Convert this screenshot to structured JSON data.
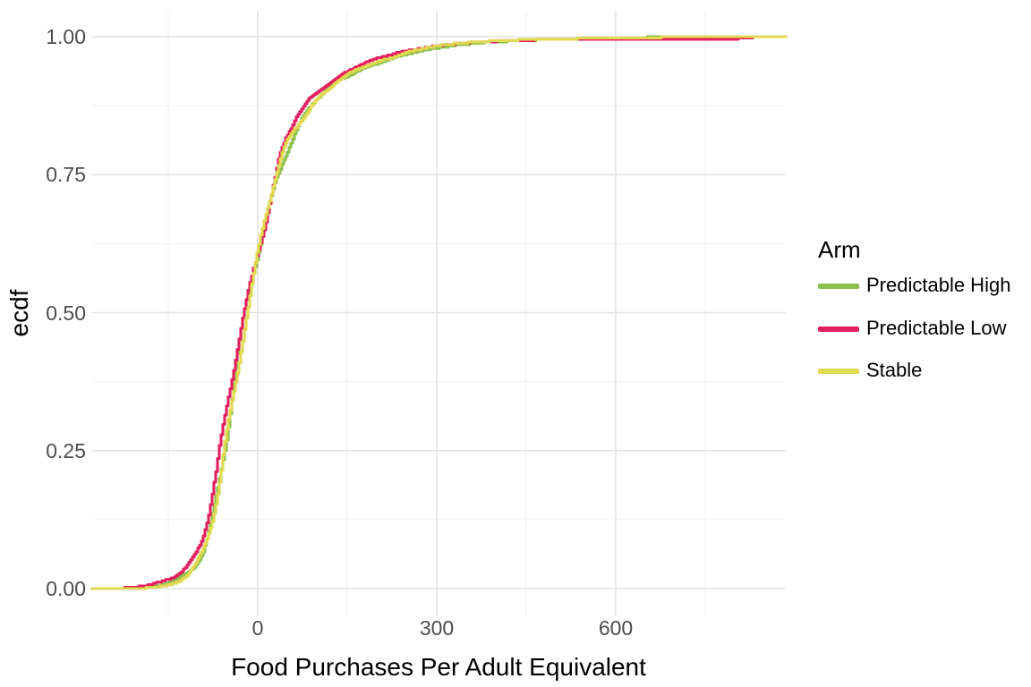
{
  "figure": {
    "y_axis": {
      "title": "ecdf",
      "ticks": [
        {
          "label": "0.00",
          "value": 0
        },
        {
          "label": "0.25",
          "value": 0.25
        },
        {
          "label": "0.50",
          "value": 0.5
        },
        {
          "label": "0.75",
          "value": 0.75
        },
        {
          "label": "1.00",
          "value": 1
        }
      ]
    },
    "x_axis": {
      "title": "Food Purchases Per Adult Equivalent",
      "ticks": [
        {
          "label": "0",
          "value": 0
        },
        {
          "label": "300",
          "value": 300
        },
        {
          "label": "600",
          "value": 600
        }
      ]
    },
    "legend": {
      "title": "Arm",
      "entries": [
        {
          "label": "Predictable High",
          "color": "#8CC04C"
        },
        {
          "label": "Predictable Low",
          "color": "#E12060"
        },
        {
          "label": "Stable",
          "color": "#E0DA50"
        }
      ]
    },
    "colors": {
      "grid_major": "#E3E3E3",
      "grid_minor": "#F1F1F1",
      "tick_text": "#4d4d4d",
      "title_text": "#000000"
    }
  },
  "chart_data": {
    "type": "line",
    "subtype": "ecdf_step",
    "title": "",
    "xlabel": "Food Purchases Per Adult Equivalent",
    "ylabel": "ecdf",
    "xlim": [
      -277,
      885
    ],
    "ylim": [
      -0.05,
      1.05
    ],
    "grid": true,
    "legend_position": "right",
    "legend_title": "Arm",
    "x_major_gridlines": [
      0,
      300,
      600
    ],
    "x_minor_gridlines": [
      -150,
      150,
      450,
      750
    ],
    "y_major_gridlines": [
      0,
      0.25,
      0.5,
      0.75,
      1
    ],
    "y_minor_gridlines": [
      0.125,
      0.375,
      0.625,
      0.875
    ],
    "n_steps": 420,
    "series": [
      {
        "name": "Predictable High",
        "color": "#8CC04C",
        "points": [
          [
            -277,
            0
          ],
          [
            -210,
            0.0005
          ],
          [
            -182,
            0.003
          ],
          [
            -158,
            0.007
          ],
          [
            -144,
            0.012
          ],
          [
            -130,
            0.019
          ],
          [
            -119,
            0.027
          ],
          [
            -110,
            0.037
          ],
          [
            -102,
            0.05
          ],
          [
            -95,
            0.066
          ],
          [
            -88,
            0.088
          ],
          [
            -82,
            0.112
          ],
          [
            -76,
            0.142
          ],
          [
            -70,
            0.176
          ],
          [
            -64,
            0.213
          ],
          [
            -57,
            0.254
          ],
          [
            -51,
            0.295
          ],
          [
            -45,
            0.337
          ],
          [
            -39,
            0.38
          ],
          [
            -33,
            0.421
          ],
          [
            -27,
            0.459
          ],
          [
            -21,
            0.493
          ],
          [
            -15,
            0.525
          ],
          [
            -9,
            0.556
          ],
          [
            -3,
            0.586
          ],
          [
            3,
            0.616
          ],
          [
            9,
            0.646
          ],
          [
            15,
            0.674
          ],
          [
            21,
            0.701
          ],
          [
            27,
            0.727
          ],
          [
            33,
            0.751
          ],
          [
            40,
            0.776
          ],
          [
            47,
            0.797
          ],
          [
            55,
            0.816
          ],
          [
            63,
            0.833
          ],
          [
            71,
            0.848
          ],
          [
            79,
            0.86
          ],
          [
            88,
            0.873
          ],
          [
            98,
            0.885
          ],
          [
            108,
            0.896
          ],
          [
            120,
            0.907
          ],
          [
            133,
            0.917
          ],
          [
            147,
            0.927
          ],
          [
            162,
            0.936
          ],
          [
            178,
            0.944
          ],
          [
            196,
            0.951
          ],
          [
            214,
            0.957
          ],
          [
            234,
            0.963
          ],
          [
            255,
            0.969
          ],
          [
            278,
            0.975
          ],
          [
            300,
            0.98
          ],
          [
            325,
            0.984
          ],
          [
            355,
            0.987
          ],
          [
            390,
            0.99
          ],
          [
            430,
            0.9925
          ],
          [
            470,
            0.9945
          ],
          [
            520,
            0.9958
          ],
          [
            570,
            0.997
          ],
          [
            630,
            0.998
          ],
          [
            690,
            1.0
          ],
          [
            885,
            1.0
          ]
        ]
      },
      {
        "name": "Predictable Low",
        "color": "#E12060",
        "points": [
          [
            -277,
            0
          ],
          [
            -225,
            0.001
          ],
          [
            -195,
            0.004
          ],
          [
            -172,
            0.009
          ],
          [
            -156,
            0.015
          ],
          [
            -142,
            0.022
          ],
          [
            -130,
            0.031
          ],
          [
            -120,
            0.042
          ],
          [
            -111,
            0.055
          ],
          [
            -103,
            0.07
          ],
          [
            -95,
            0.089
          ],
          [
            -88,
            0.112
          ],
          [
            -81,
            0.14
          ],
          [
            -74,
            0.174
          ],
          [
            -67,
            0.212
          ],
          [
            -61,
            0.252
          ],
          [
            -55,
            0.294
          ],
          [
            -49,
            0.336
          ],
          [
            -43,
            0.379
          ],
          [
            -37,
            0.421
          ],
          [
            -31,
            0.459
          ],
          [
            -25,
            0.493
          ],
          [
            -19,
            0.525
          ],
          [
            -13,
            0.556
          ],
          [
            -7,
            0.586
          ],
          [
            -1,
            0.616
          ],
          [
            5,
            0.646
          ],
          [
            11,
            0.674
          ],
          [
            17,
            0.701
          ],
          [
            23,
            0.727
          ],
          [
            29,
            0.751
          ],
          [
            35,
            0.777
          ],
          [
            42,
            0.799
          ],
          [
            49,
            0.818
          ],
          [
            57,
            0.836
          ],
          [
            64,
            0.852
          ],
          [
            72,
            0.864
          ],
          [
            80,
            0.876
          ],
          [
            90,
            0.888
          ],
          [
            100,
            0.899
          ],
          [
            111,
            0.91
          ],
          [
            124,
            0.921
          ],
          [
            138,
            0.931
          ],
          [
            152,
            0.94
          ],
          [
            168,
            0.948
          ],
          [
            185,
            0.955
          ],
          [
            205,
            0.962
          ],
          [
            225,
            0.968
          ],
          [
            247,
            0.974
          ],
          [
            270,
            0.979
          ],
          [
            295,
            0.983
          ],
          [
            322,
            0.986
          ],
          [
            352,
            0.989
          ],
          [
            385,
            0.991
          ],
          [
            425,
            0.993
          ],
          [
            470,
            0.9942
          ],
          [
            520,
            0.9948
          ],
          [
            600,
            0.9952
          ],
          [
            700,
            0.9958
          ],
          [
            800,
            0.9962
          ],
          [
            838,
            1.0
          ],
          [
            885,
            1.0
          ]
        ]
      },
      {
        "name": "Stable",
        "color": "#E0DA50",
        "points": [
          [
            -277,
            0
          ],
          [
            -205,
            0.0005
          ],
          [
            -175,
            0.002
          ],
          [
            -152,
            0.006
          ],
          [
            -138,
            0.011
          ],
          [
            -126,
            0.017
          ],
          [
            -116,
            0.025
          ],
          [
            -107,
            0.035
          ],
          [
            -99,
            0.048
          ],
          [
            -92,
            0.065
          ],
          [
            -86,
            0.085
          ],
          [
            -80,
            0.11
          ],
          [
            -74,
            0.14
          ],
          [
            -68,
            0.175
          ],
          [
            -62,
            0.213
          ],
          [
            -58,
            0.25
          ],
          [
            -52,
            0.293
          ],
          [
            -46,
            0.335
          ],
          [
            -40,
            0.378
          ],
          [
            -34,
            0.42
          ],
          [
            -28,
            0.458
          ],
          [
            -22,
            0.492
          ],
          [
            -16,
            0.524
          ],
          [
            -10,
            0.555
          ],
          [
            -4,
            0.585
          ],
          [
            2,
            0.615
          ],
          [
            8,
            0.645
          ],
          [
            14,
            0.673
          ],
          [
            20,
            0.7
          ],
          [
            26,
            0.726
          ],
          [
            32,
            0.75
          ],
          [
            39,
            0.776
          ],
          [
            46,
            0.797
          ],
          [
            54,
            0.816
          ],
          [
            62,
            0.833
          ],
          [
            70,
            0.848
          ],
          [
            78,
            0.861
          ],
          [
            87,
            0.874
          ],
          [
            97,
            0.886
          ],
          [
            107,
            0.897
          ],
          [
            119,
            0.908
          ],
          [
            132,
            0.918
          ],
          [
            146,
            0.928
          ],
          [
            160,
            0.936
          ],
          [
            177,
            0.945
          ],
          [
            194,
            0.952
          ],
          [
            212,
            0.959
          ],
          [
            232,
            0.966
          ],
          [
            252,
            0.972
          ],
          [
            274,
            0.978
          ],
          [
            297,
            0.982
          ],
          [
            322,
            0.9865
          ],
          [
            352,
            0.9895
          ],
          [
            382,
            0.9915
          ],
          [
            422,
            0.9935
          ],
          [
            462,
            0.995
          ],
          [
            512,
            0.996
          ],
          [
            562,
            0.997
          ],
          [
            622,
            0.998
          ],
          [
            690,
            0.999
          ],
          [
            720,
            1.0
          ],
          [
            885,
            1.0
          ]
        ]
      }
    ]
  }
}
